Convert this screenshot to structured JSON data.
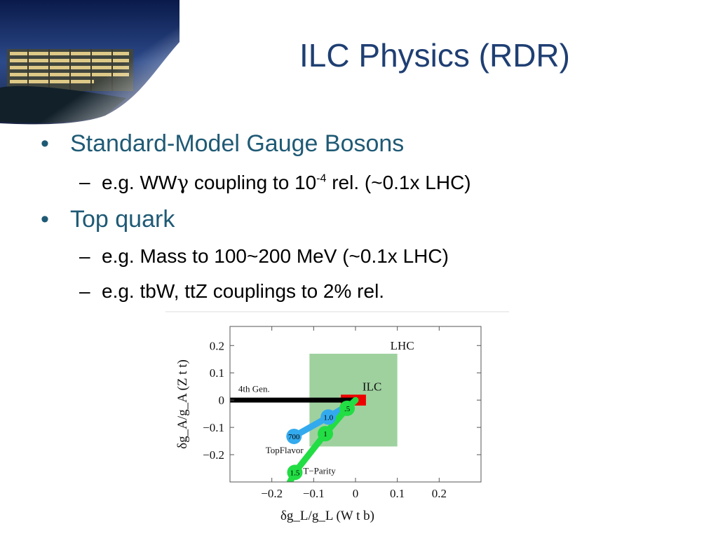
{
  "slide": {
    "title": "ILC Physics (RDR)"
  },
  "bullets": [
    {
      "label": "Standard-Model Gauge Bosons",
      "subs": [
        {
          "text_a": "e.g. WW",
          "gamma": "γ",
          "text_b": " coupling to 10",
          "sup": "-4",
          "text_c": " rel. (~0.1x LHC)"
        }
      ]
    },
    {
      "label": "Top quark",
      "subs": [
        {
          "text": "e.g. Mass to 100~200 MeV (~0.1x LHC)"
        },
        {
          "text": "e.g. tbW, ttZ couplings to 2% rel."
        }
      ]
    }
  ],
  "markers": {
    "bullet": "•",
    "dash": "–"
  },
  "chart_data": {
    "type": "scatter",
    "xlabel": "δg_L/g_L  (W t b)",
    "ylabel": "δg_A/g_A  (Z t t)",
    "xlim": [
      -0.3,
      0.3
    ],
    "ylim": [
      -0.3,
      0.27
    ],
    "xticks": [
      "−0.2",
      "−0.1",
      "0",
      "0.1",
      "0.2"
    ],
    "xtick_values": [
      -0.2,
      -0.1,
      0,
      0.1,
      0.2
    ],
    "yticks": [
      "0.2",
      "0.1",
      "0",
      "−0.1",
      "−0.2"
    ],
    "ytick_values": [
      0.2,
      0.1,
      0,
      -0.1,
      -0.2
    ],
    "regions": [
      {
        "name": "LHC",
        "x": [
          -0.11,
          0.1
        ],
        "y": [
          -0.17,
          0.17
        ],
        "color": "#9fd19f"
      },
      {
        "name": "ILC",
        "x": [
          -0.035,
          0.025
        ],
        "y": [
          -0.02,
          0.02
        ],
        "color": "#ee0000"
      }
    ],
    "series": [
      {
        "name": "4th Gen.",
        "color": "#000000",
        "points": [
          [
            -0.3,
            0.0
          ],
          [
            0.0,
            0.0
          ]
        ],
        "labels": []
      },
      {
        "name": "TopFlavor",
        "color": "#33aaee",
        "points": [
          [
            -0.147,
            -0.133
          ],
          [
            -0.065,
            -0.062
          ],
          [
            -0.03,
            -0.03
          ]
        ],
        "labels": [
          "700",
          "1.0",
          ""
        ]
      },
      {
        "name": "T−Parity",
        "color": "#22dd44",
        "points": [
          [
            -0.16,
            -0.31
          ],
          [
            -0.145,
            -0.265
          ],
          [
            -0.072,
            -0.123
          ],
          [
            -0.02,
            -0.03
          ],
          [
            0.0,
            0.0
          ]
        ],
        "labels": [
          "",
          "1.5",
          "1",
          ".5",
          ""
        ]
      }
    ]
  }
}
